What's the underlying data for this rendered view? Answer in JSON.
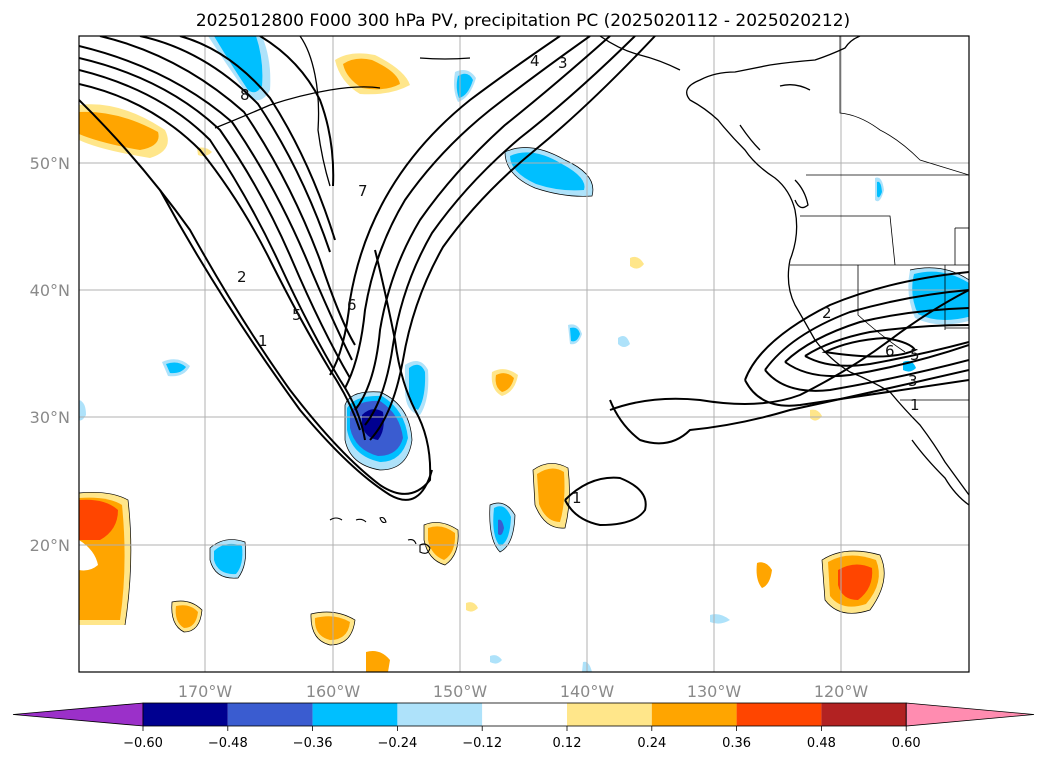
{
  "title": "2025012800 F000 300 hPa PV, precipitation PC (2025020112 - 2025020212)",
  "map": {
    "lat_labels": [
      "50°N",
      "40°N",
      "30°N",
      "20°N"
    ],
    "lon_labels": [
      "170°W",
      "160°W",
      "150°W",
      "140°W",
      "130°W",
      "120°W"
    ],
    "lat_values": [
      50,
      40,
      30,
      20
    ],
    "lon_values": [
      -170,
      -160,
      -150,
      -140,
      -130,
      -120
    ],
    "extent": {
      "lon_min": -180,
      "lon_max": -110,
      "lat_min": 10,
      "lat_max": 60
    },
    "gridlines": true
  },
  "pv_contour_labels": [
    "1",
    "2",
    "3",
    "4",
    "5",
    "6",
    "7",
    "8",
    "1",
    "2",
    "3",
    "5",
    "6",
    "1"
  ],
  "colorbar": {
    "tick_labels": [
      "−0.60",
      "−0.48",
      "−0.36",
      "−0.24",
      "−0.12",
      "0.12",
      "0.24",
      "0.36",
      "0.48",
      "0.60"
    ],
    "levels": [
      -0.6,
      -0.48,
      -0.36,
      -0.24,
      -0.12,
      0.12,
      0.24,
      0.36,
      0.48,
      0.6
    ],
    "colors": [
      "#9b30c9",
      "#000090",
      "#3a5cd0",
      "#00bfff",
      "#aee2fa",
      "#ffffff",
      "#ffe68a",
      "#ffa500",
      "#ff4500",
      "#b22222",
      "#ff8cb0"
    ],
    "extend": "both"
  }
}
